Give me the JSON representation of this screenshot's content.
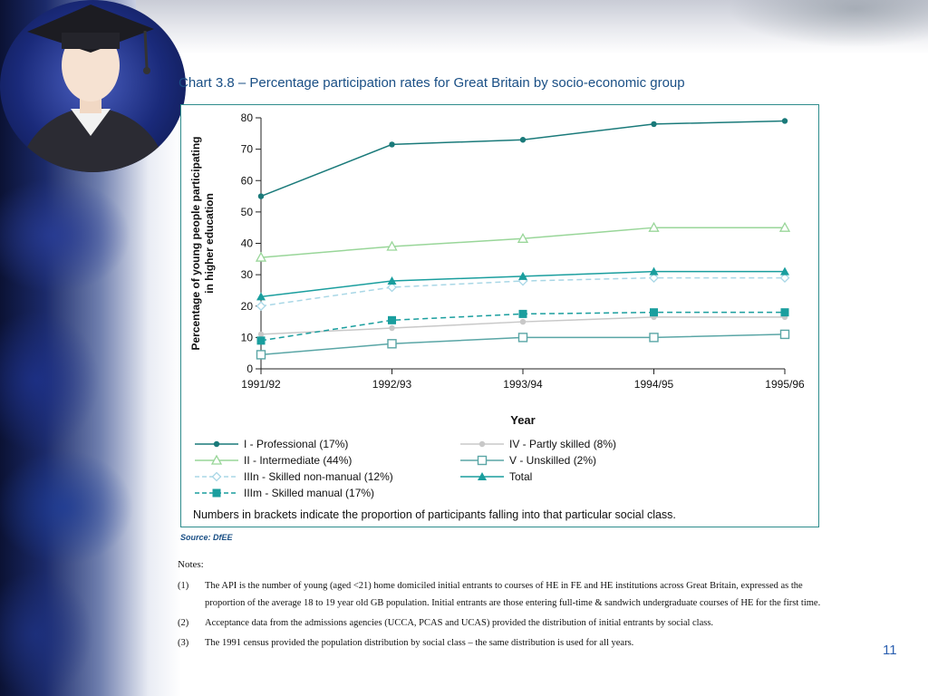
{
  "chart_data": {
    "type": "line",
    "title": "Chart 3.8 – Percentage participation rates for Great Britain by socio-economic group",
    "xlabel": "Year",
    "ylabel": "Percentage of young people participating in higher education",
    "ylabel_lines": [
      "Percentage of young people participating",
      "in higher education"
    ],
    "categories": [
      "1991/92",
      "1992/93",
      "1993/94",
      "1994/95",
      "1995/96"
    ],
    "ylim": [
      0,
      80
    ],
    "yticks": [
      "0",
      "10",
      "20",
      "30",
      "40",
      "50",
      "60",
      "70",
      "80"
    ],
    "grid": false,
    "legend_position": "bottom",
    "series": [
      {
        "name": "I - Professional (17%)",
        "values": [
          55,
          71.5,
          73,
          78,
          79
        ],
        "color": "#1a7a7a",
        "marker": "dot",
        "dash": false
      },
      {
        "name": "II - Intermediate (44%)",
        "values": [
          35.5,
          39,
          41.5,
          45,
          45
        ],
        "color": "#99d699",
        "marker": "triangle-open",
        "dash": false
      },
      {
        "name": "IIIn - Skilled non-manual (12%)",
        "values": [
          20,
          26,
          28,
          29,
          29
        ],
        "color": "#a9d7e6",
        "marker": "diamond-open",
        "dash": true
      },
      {
        "name": "IIIm - Skilled manual (17%)",
        "values": [
          9,
          15.5,
          17.5,
          18,
          18
        ],
        "color": "#1a9e9e",
        "marker": "square",
        "dash": true
      },
      {
        "name": "IV - Partly skilled (8%)",
        "values": [
          11,
          13,
          15,
          16.5,
          16.5
        ],
        "color": "#c8c8c8",
        "marker": "dot",
        "dash": false
      },
      {
        "name": "V - Unskilled (2%)",
        "values": [
          4.5,
          8,
          10,
          10,
          11
        ],
        "color": "#5aa6a6",
        "marker": "square-open",
        "dash": false
      },
      {
        "name": "Total",
        "values": [
          23,
          28,
          29.5,
          31,
          31
        ],
        "color": "#1a9e9e",
        "marker": "triangle",
        "dash": false
      }
    ],
    "annotation": "Numbers in brackets indicate the proportion of participants falling into that particular social class."
  },
  "source": "Source: DfEE",
  "notes": {
    "heading": "Notes:",
    "items": [
      {
        "num": "(1)",
        "text": "The API is the number of young (aged <21) home domiciled initial entrants to courses of HE in FE and HE institutions across Great Britain, expressed as the proportion of the average 18 to 19 year old GB population. Initial entrants are those entering full-time & sandwich undergraduate courses of HE for the first time."
      },
      {
        "num": "(2)",
        "text": "Acceptance data from the admissions agencies (UCCA, PCAS and UCAS) provided the distribution of initial entrants by social class."
      },
      {
        "num": "(3)",
        "text": "The 1991 census provided the population distribution by social class – the same distribution is used for all years."
      }
    ]
  },
  "page_number": "11"
}
